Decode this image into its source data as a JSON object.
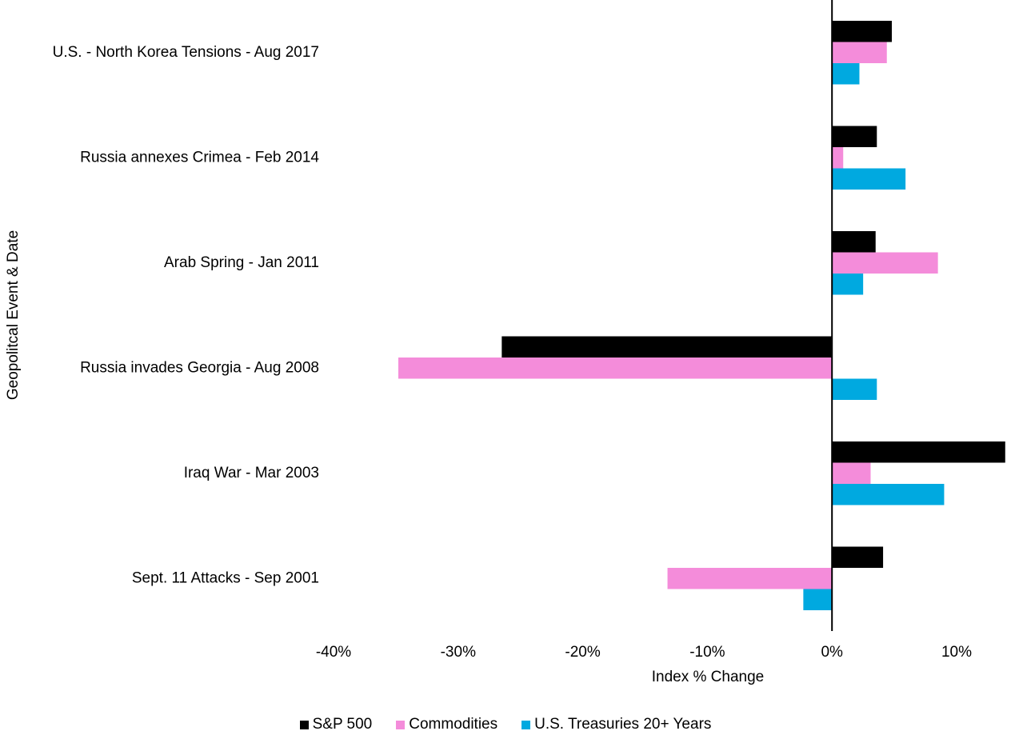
{
  "chart_data": {
    "type": "bar",
    "orientation": "horizontal",
    "title": "",
    "categories": [
      "U.S. - North Korea Tensions - Aug 2017",
      "Russia annexes Crimea - Feb 2014",
      "Arab Spring - Jan 2011",
      "Russia invades Georgia - Aug 2008",
      "Iraq War - Mar 2003",
      "Sept. 11 Attacks - Sep 2001"
    ],
    "series": [
      {
        "name": "S&P 500",
        "color": "#000000",
        "values": [
          4.8,
          3.6,
          3.5,
          -26.5,
          13.9,
          4.1
        ]
      },
      {
        "name": "Commodities",
        "color": "#f48cda",
        "values": [
          4.4,
          0.9,
          8.5,
          -34.8,
          3.1,
          -13.2
        ]
      },
      {
        "name": "U.S. Treasuries 20+ Years",
        "color": "#00a9e0",
        "values": [
          2.2,
          5.9,
          2.5,
          3.6,
          9.0,
          -2.3
        ]
      }
    ],
    "xlabel": "Index % Change",
    "ylabel": "Geopolitcal Event & Date",
    "xlim": [
      -40,
      10
    ],
    "xticks": [
      -40,
      -30,
      -20,
      -10,
      0,
      10
    ],
    "xtick_labels": [
      "-40%",
      "-30%",
      "-20%",
      "-10%",
      "0%",
      "10%"
    ],
    "grid": false,
    "legend_position": "bottom"
  }
}
